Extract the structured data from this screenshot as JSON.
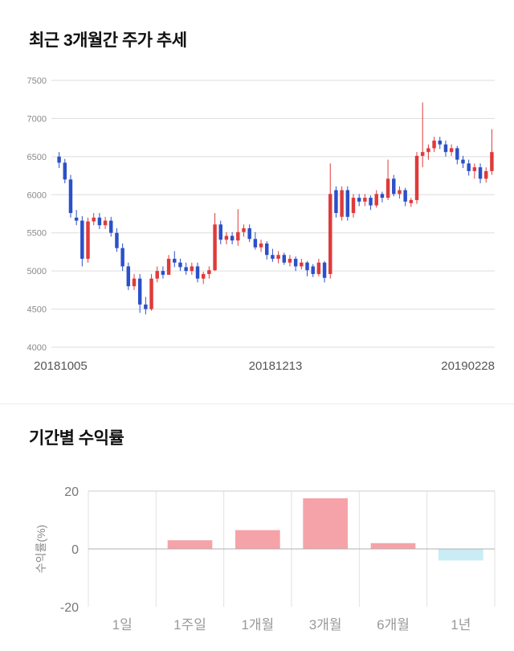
{
  "sections": {
    "price": {
      "title": "최근 3개월간 주가 추세"
    },
    "returns": {
      "title": "기간별 수익률"
    }
  },
  "chart_data": [
    {
      "type": "candlestick",
      "title": "최근 3개월간 주가 추세",
      "ylim": [
        4000,
        7500
      ],
      "yticks": [
        7500,
        7000,
        6500,
        6000,
        5500,
        5000,
        4500,
        4000
      ],
      "xticks": [
        "20181005",
        "20181213",
        "20190228"
      ],
      "up_color": "#e03a3a",
      "down_color": "#2b50c8",
      "grid_color": "#dddddd",
      "candles": [
        [
          6500,
          6560,
          6350,
          6420
        ],
        [
          6420,
          6470,
          6150,
          6200
        ],
        [
          6200,
          6260,
          5700,
          5760
        ],
        [
          5700,
          5800,
          5600,
          5660
        ],
        [
          5660,
          5720,
          5060,
          5160
        ],
        [
          5160,
          5700,
          5110,
          5650
        ],
        [
          5650,
          5760,
          5600,
          5700
        ],
        [
          5700,
          5760,
          5550,
          5600
        ],
        [
          5600,
          5710,
          5550,
          5660
        ],
        [
          5660,
          5710,
          5450,
          5500
        ],
        [
          5500,
          5560,
          5250,
          5300
        ],
        [
          5300,
          5360,
          5000,
          5060
        ],
        [
          5060,
          5110,
          4750,
          4800
        ],
        [
          4800,
          4960,
          4750,
          4900
        ],
        [
          4900,
          4960,
          4450,
          4560
        ],
        [
          4560,
          4660,
          4430,
          4500
        ],
        [
          4500,
          4960,
          4480,
          4900
        ],
        [
          4900,
          5060,
          4850,
          5000
        ],
        [
          5000,
          5060,
          4900,
          4950
        ],
        [
          4950,
          5210,
          4950,
          5160
        ],
        [
          5160,
          5260,
          5050,
          5110
        ],
        [
          5110,
          5160,
          5000,
          5050
        ],
        [
          5050,
          5110,
          4950,
          5000
        ],
        [
          5000,
          5110,
          4950,
          5060
        ],
        [
          5060,
          5110,
          4850,
          4900
        ],
        [
          4900,
          4990,
          4830,
          4960
        ],
        [
          4960,
          5060,
          4900,
          5010
        ],
        [
          5010,
          5760,
          5000,
          5610
        ],
        [
          5610,
          5660,
          5350,
          5410
        ],
        [
          5410,
          5510,
          5350,
          5460
        ],
        [
          5460,
          5510,
          5350,
          5400
        ],
        [
          5400,
          5810,
          5330,
          5510
        ],
        [
          5510,
          5610,
          5450,
          5560
        ],
        [
          5560,
          5610,
          5380,
          5420
        ],
        [
          5420,
          5510,
          5280,
          5310
        ],
        [
          5310,
          5410,
          5250,
          5360
        ],
        [
          5360,
          5390,
          5150,
          5210
        ],
        [
          5210,
          5290,
          5120,
          5160
        ],
        [
          5160,
          5260,
          5100,
          5210
        ],
        [
          5210,
          5240,
          5080,
          5110
        ],
        [
          5110,
          5210,
          5060,
          5160
        ],
        [
          5160,
          5190,
          5000,
          5060
        ],
        [
          5060,
          5160,
          5020,
          5110
        ],
        [
          5110,
          5130,
          4930,
          5010
        ],
        [
          5060,
          5090,
          4920,
          4960
        ],
        [
          4960,
          5160,
          4930,
          5110
        ],
        [
          5110,
          5130,
          4850,
          4910
        ],
        [
          4960,
          6410,
          4900,
          6010
        ],
        [
          6060,
          6110,
          5700,
          5760
        ],
        [
          5710,
          6110,
          5660,
          6060
        ],
        [
          6060,
          6110,
          5660,
          5710
        ],
        [
          5760,
          6010,
          5700,
          5960
        ],
        [
          5960,
          6010,
          5850,
          5910
        ],
        [
          5910,
          6010,
          5850,
          5960
        ],
        [
          5960,
          5990,
          5800,
          5860
        ],
        [
          5860,
          6060,
          5830,
          6010
        ],
        [
          6010,
          6040,
          5900,
          5960
        ],
        [
          5960,
          6460,
          5930,
          6210
        ],
        [
          6210,
          6260,
          5980,
          6010
        ],
        [
          6010,
          6110,
          5950,
          6060
        ],
        [
          6060,
          6090,
          5850,
          5910
        ],
        [
          5890,
          5960,
          5840,
          5930
        ],
        [
          5930,
          6560,
          5880,
          6510
        ],
        [
          6510,
          7210,
          6360,
          6560
        ],
        [
          6560,
          6660,
          6460,
          6610
        ],
        [
          6610,
          6760,
          6560,
          6710
        ],
        [
          6710,
          6760,
          6600,
          6660
        ],
        [
          6660,
          6710,
          6500,
          6560
        ],
        [
          6560,
          6660,
          6510,
          6610
        ],
        [
          6610,
          6640,
          6400,
          6460
        ],
        [
          6460,
          6510,
          6350,
          6410
        ],
        [
          6410,
          6460,
          6250,
          6310
        ],
        [
          6310,
          6410,
          6210,
          6360
        ],
        [
          6360,
          6410,
          6150,
          6210
        ],
        [
          6210,
          6360,
          6160,
          6310
        ],
        [
          6310,
          6860,
          6260,
          6560
        ]
      ]
    },
    {
      "type": "bar",
      "title": "기간별 수익률",
      "ylabel": "수익률(%)",
      "ylim": [
        -20,
        20
      ],
      "yticks": [
        20,
        0,
        -20
      ],
      "categories": [
        "1일",
        "1주일",
        "1개월",
        "3개월",
        "6개월",
        "1년"
      ],
      "values": [
        0,
        3,
        6.5,
        17.5,
        2,
        -4
      ],
      "positive_color": "#f5a3a8",
      "negative_color": "#c9ecf5",
      "grid_color": "#e2e2e2",
      "zero_line_color": "#b0b0b0",
      "top_line_color": "#cfcfcf"
    }
  ]
}
